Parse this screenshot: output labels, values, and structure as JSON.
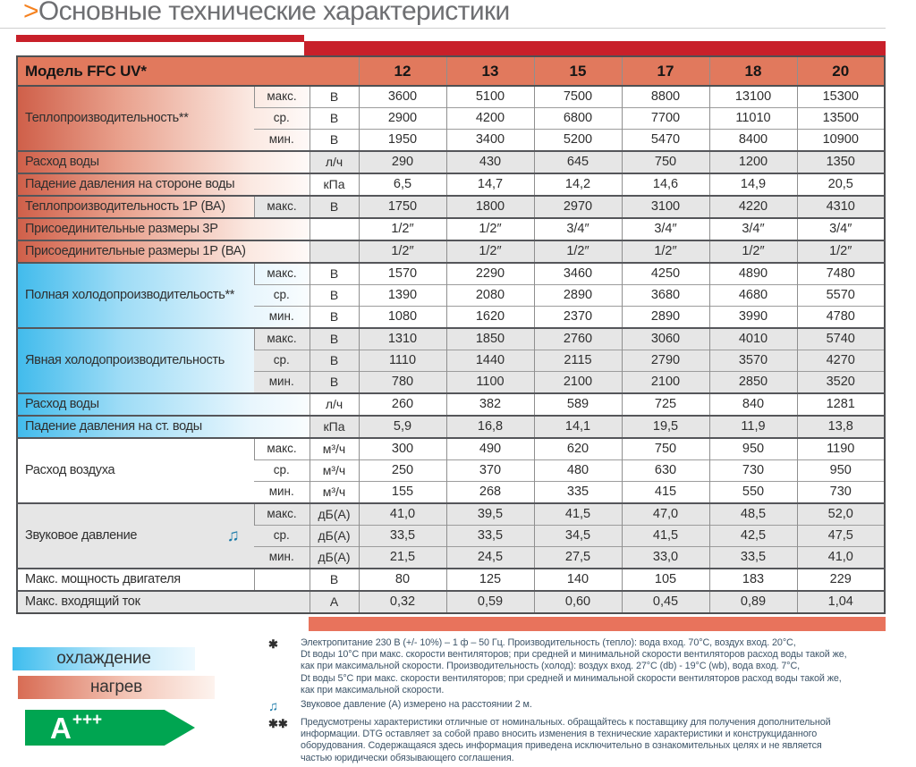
{
  "title": {
    "chevron": ">",
    "text": "Основные технические характеристики"
  },
  "colors": {
    "accent_red": "#c8202a",
    "salmon_bar": "#e8735c",
    "header_bg": "#e1795d",
    "heat_gradient_start": "#cf5f49",
    "cool_gradient_start": "#41bbec",
    "row_gray": "#e6e6e6",
    "energy_green": "#00a551",
    "note_blue": "#1a7aa8",
    "title_chevron_orange": "#f58220"
  },
  "table": {
    "model_label": "Модель FFC UV*",
    "columns": [
      "12",
      "13",
      "15",
      "17",
      "18",
      "20"
    ],
    "groups": [
      {
        "section": "heat",
        "shade": "white",
        "label": "Теплопроизводительность**",
        "rows": [
          {
            "sub": "макс.",
            "unit": "В",
            "values": [
              "3600",
              "5100",
              "7500",
              "8800",
              "13100",
              "15300"
            ]
          },
          {
            "sub": "ср.",
            "unit": "В",
            "values": [
              "2900",
              "4200",
              "6800",
              "7700",
              "11010",
              "13500"
            ]
          },
          {
            "sub": "мин.",
            "unit": "В",
            "values": [
              "1950",
              "3400",
              "5200",
              "5470",
              "8400",
              "10900"
            ]
          }
        ]
      },
      {
        "section": "heat",
        "shade": "gray",
        "label": "Расход воды",
        "span": true,
        "rows": [
          {
            "unit": "л/ч",
            "values": [
              "290",
              "430",
              "645",
              "750",
              "1200",
              "1350"
            ]
          }
        ]
      },
      {
        "section": "heat",
        "shade": "white",
        "label": "Падение давления на стороне  воды",
        "span": true,
        "rows": [
          {
            "unit": "кПа",
            "values": [
              "6,5",
              "14,7",
              "14,2",
              "14,6",
              "14,9",
              "20,5"
            ]
          }
        ]
      },
      {
        "section": "heat",
        "shade": "gray",
        "label": "Теплопроизводительность 1Р (ВА)",
        "rows": [
          {
            "sub": "макс.",
            "unit": "В",
            "values": [
              "1750",
              "1800",
              "2970",
              "3100",
              "4220",
              "4310"
            ]
          }
        ]
      },
      {
        "section": "heat",
        "shade": "white",
        "label": "Присоединительные размеры 3Р",
        "span": true,
        "rows": [
          {
            "unit": "",
            "values": [
              "1/2″",
              "1/2″",
              "3/4″",
              "3/4″",
              "3/4″",
              "3/4″"
            ]
          }
        ]
      },
      {
        "section": "heat",
        "shade": "gray",
        "label": "Присоединительные размеры 1Р (ВА)",
        "span": true,
        "rows": [
          {
            "unit": "",
            "values": [
              "1/2″",
              "1/2″",
              "1/2″",
              "1/2″",
              "1/2″",
              "1/2″"
            ]
          }
        ]
      },
      {
        "section": "cool",
        "shade": "white",
        "label": "Полная холодопроизводительость**",
        "rows": [
          {
            "sub": "макс.",
            "unit": "В",
            "values": [
              "1570",
              "2290",
              "3460",
              "4250",
              "4890",
              "7480"
            ]
          },
          {
            "sub": "ср.",
            "unit": "В",
            "values": [
              "1390",
              "2080",
              "2890",
              "3680",
              "4680",
              "5570"
            ]
          },
          {
            "sub": "мин.",
            "unit": "В",
            "values": [
              "1080",
              "1620",
              "2370",
              "2890",
              "3990",
              "4780"
            ]
          }
        ]
      },
      {
        "section": "cool",
        "shade": "gray",
        "label": "Явная холодопроизводительность",
        "rows": [
          {
            "sub": "макс.",
            "unit": "В",
            "values": [
              "1310",
              "1850",
              "2760",
              "3060",
              "4010",
              "5740"
            ]
          },
          {
            "sub": "ср.",
            "unit": "В",
            "values": [
              "1110",
              "1440",
              "2115",
              "2790",
              "3570",
              "4270"
            ]
          },
          {
            "sub": "мин.",
            "unit": "В",
            "values": [
              "780",
              "1100",
              "2100",
              "2100",
              "2850",
              "3520"
            ]
          }
        ]
      },
      {
        "section": "cool",
        "shade": "white",
        "label": "Расход воды",
        "span": true,
        "rows": [
          {
            "unit": "л/ч",
            "values": [
              "260",
              "382",
              "589",
              "725",
              "840",
              "1281"
            ]
          }
        ]
      },
      {
        "section": "cool",
        "shade": "gray",
        "label": "Падение давления на ст. воды",
        "span": true,
        "rows": [
          {
            "unit": "кПа",
            "values": [
              "5,9",
              "16,8",
              "14,1",
              "19,5",
              "11,9",
              "13,8"
            ]
          }
        ]
      },
      {
        "section": "plain",
        "shade": "white",
        "label": "Расход воздуха",
        "rows": [
          {
            "sub": "макс.",
            "unit": "м³/ч",
            "values": [
              "300",
              "490",
              "620",
              "750",
              "950",
              "1190"
            ]
          },
          {
            "sub": "ср.",
            "unit": "м³/ч",
            "values": [
              "250",
              "370",
              "480",
              "630",
              "730",
              "950"
            ]
          },
          {
            "sub": "мин.",
            "unit": "м³/ч",
            "values": [
              "155",
              "268",
              "335",
              "415",
              "550",
              "730"
            ]
          }
        ]
      },
      {
        "section": "plain",
        "shade": "gray",
        "label": "Звуковое давление",
        "icon": "♫",
        "rows": [
          {
            "sub": "макс.",
            "unit": "дБ(А)",
            "values": [
              "41,0",
              "39,5",
              "41,5",
              "47,0",
              "48,5",
              "52,0"
            ]
          },
          {
            "sub": "ср.",
            "unit": "дБ(А)",
            "values": [
              "33,5",
              "33,5",
              "34,5",
              "41,5",
              "42,5",
              "47,5"
            ]
          },
          {
            "sub": "мин.",
            "unit": "дБ(А)",
            "values": [
              "21,5",
              "24,5",
              "27,5",
              "33,0",
              "33,5",
              "41,0"
            ]
          }
        ]
      },
      {
        "section": "plain",
        "shade": "white",
        "label": "Макс. мощность двигателя",
        "rows": [
          {
            "sub": "",
            "unit": "В",
            "values": [
              "80",
              "125",
              "140",
              "105",
              "183",
              "229"
            ]
          }
        ]
      },
      {
        "section": "plain",
        "shade": "gray",
        "label": "Макс. входящий ток",
        "span": true,
        "rows": [
          {
            "unit": "А",
            "values": [
              "0,32",
              "0,59",
              "0,60",
              "0,45",
              "0,89",
              "1,04"
            ]
          }
        ]
      }
    ]
  },
  "footnotes": [
    {
      "symbol": "✱",
      "text": "Электропитание 230 В (+/- 10%) – 1 ф – 50 Гц. Производительность (тепло): вода вход. 70°С,  воздух вход. 20°С,\nDt воды 10°С при макс. скорости вентиляторов; при средней и минимальной скорости вентиляторов расход воды такой же,\nкак при максимальной скорости. Производительность (холод): воздух вход. 27°С (db) - 19°С (wb), вода вход. 7°С,\nDt воды 5°С при макс. скорости вентиляторов; при средней и минимальной скорости вентиляторов расход воды такой же,\nкак при максимальной скорости."
    },
    {
      "symbol": "♫",
      "text": "Звуковое давление (А) измерено на расстоянии 2 м."
    },
    {
      "symbol": "✱✱",
      "text": "Предусмотрены характеристики отличные от номинальных. обращайтесь к поставщику для получения дополнительной\nинформации.  DTG  оставляет за собой право вносить изменения в технические характеристики и конструкциданного\nоборудования.  Содержащаяся здесь информация приведена исключительно в ознакомительных целях и не является\nчастью юридически обязывающего соглашения."
    }
  ],
  "legend": {
    "cooling_label": "охлаждение",
    "heating_label": "нагрев",
    "energy_rating": "A",
    "energy_plus": "+++"
  }
}
